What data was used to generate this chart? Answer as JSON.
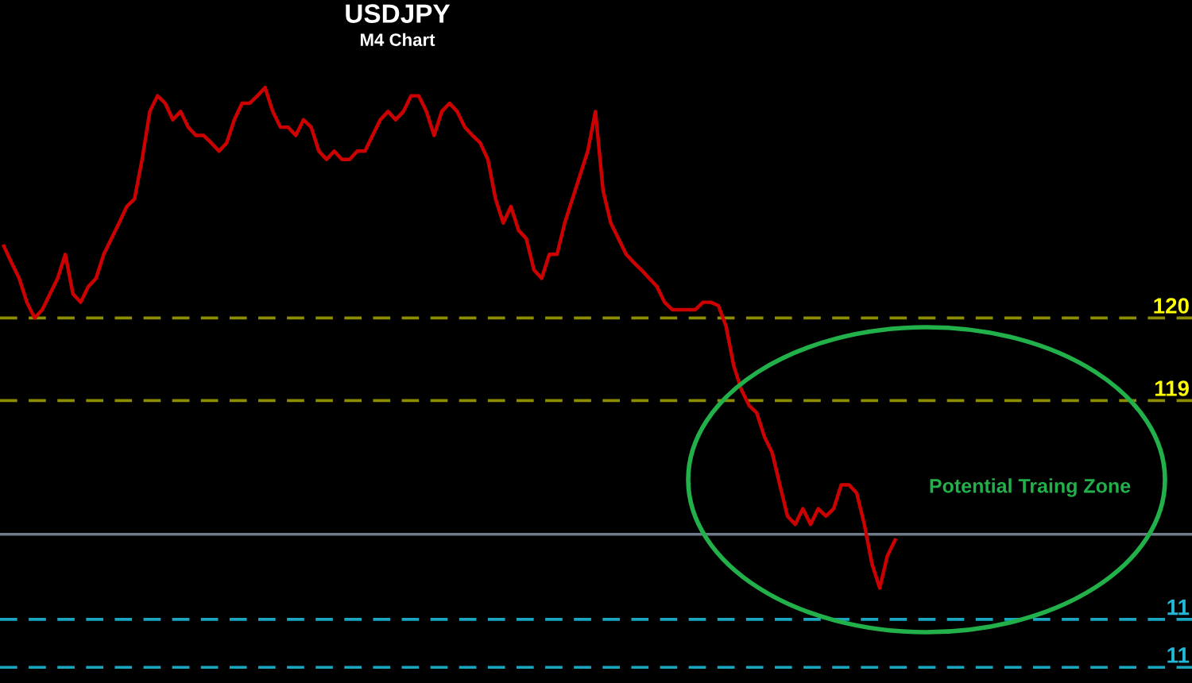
{
  "chart_data": {
    "type": "line",
    "title": "USDJPY",
    "subtitle": "M4 Chart",
    "categories": [
      null,
      null,
      null,
      null,
      null,
      null,
      null,
      null,
      null,
      null,
      null,
      null,
      null,
      null,
      null,
      null,
      null,
      null,
      null,
      null,
      null,
      null,
      null,
      null,
      null,
      null,
      null,
      null,
      null,
      null,
      null,
      null,
      null,
      null,
      null,
      null,
      null,
      null,
      null,
      null,
      null,
      null,
      null,
      null,
      null,
      null,
      null,
      null,
      null,
      null,
      null,
      null,
      null,
      null,
      null,
      null,
      null,
      null,
      null,
      null,
      null,
      null,
      null,
      null,
      null,
      null,
      null,
      null,
      null,
      null,
      null,
      null,
      null,
      null,
      null,
      null,
      null,
      null,
      null,
      null,
      null,
      null,
      null,
      null,
      null,
      null,
      null,
      null,
      null,
      null,
      null,
      null,
      null,
      null,
      null,
      null,
      null,
      null,
      null,
      null,
      null,
      null,
      null,
      null,
      null,
      null,
      null,
      null,
      null,
      null,
      null,
      null,
      null,
      null,
      null,
      null,
      null
    ],
    "series": [
      {
        "color": "#cc0000",
        "values": [
          120.87,
          120.67,
          120.48,
          120.19,
          120.0,
          120.1,
          120.29,
          120.48,
          120.77,
          120.29,
          120.19,
          120.38,
          120.48,
          120.77,
          120.96,
          121.15,
          121.35,
          121.44,
          121.92,
          122.5,
          122.69,
          122.6,
          122.4,
          122.5,
          122.31,
          122.21,
          122.21,
          122.12,
          122.02,
          122.12,
          122.4,
          122.6,
          122.6,
          122.69,
          122.79,
          122.5,
          122.31,
          122.31,
          122.21,
          122.4,
          122.31,
          122.02,
          121.92,
          122.02,
          121.92,
          121.92,
          122.02,
          122.02,
          122.21,
          122.4,
          122.5,
          122.4,
          122.5,
          122.69,
          122.69,
          122.5,
          122.21,
          122.5,
          122.6,
          122.5,
          122.31,
          122.21,
          122.12,
          121.92,
          121.44,
          121.15,
          121.35,
          121.06,
          120.96,
          120.58,
          120.48,
          120.77,
          120.77,
          121.15,
          121.44,
          121.73,
          122.02,
          122.5,
          121.54,
          121.15,
          120.96,
          120.77,
          120.67,
          120.58,
          120.48,
          120.38,
          120.19,
          120.1,
          120.1,
          120.1,
          120.1,
          120.19,
          120.19,
          120.15,
          119.9,
          119.42,
          119.13,
          118.94,
          118.85,
          118.56,
          118.37,
          117.98,
          117.6,
          117.5,
          117.69,
          117.5,
          117.69,
          117.6,
          117.69,
          117.98,
          117.98,
          117.88,
          117.5,
          117.02,
          116.73,
          117.12,
          117.31
        ]
      }
    ],
    "ylim": [
      115.58,
      123.85
    ],
    "grid": false,
    "legend": false,
    "ref_lines": [
      {
        "axis": "y",
        "value": 120,
        "label": "120",
        "color": "#8c8c00",
        "line_style": "dashed"
      },
      {
        "axis": "y",
        "value": 119,
        "label": "119",
        "color": "#8c8c00",
        "line_style": "dashed"
      },
      {
        "axis": "y",
        "value": 117.38,
        "color": "#6e7a88",
        "line_style": "solid"
      },
      {
        "axis": "y",
        "value": 116.35,
        "color": "#1aa6c0",
        "line_style": "dashed"
      },
      {
        "axis": "y",
        "value": 115.77,
        "color": "#1aa6c0",
        "line_style": "dashed"
      }
    ],
    "annotations": [
      "Potential Traing Zone",
      {
        "text": "11",
        "y": 116.35
      },
      {
        "text": "11",
        "y": 115.77
      }
    ]
  }
}
